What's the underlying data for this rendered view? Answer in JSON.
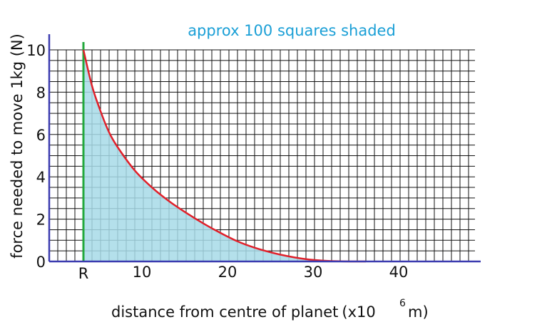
{
  "chart_data": {
    "type": "area",
    "annotation": "approx 100 squares shaded",
    "xlabel": "distance from centre of planet",
    "xlabel_unit_prefix": "(x10",
    "xlabel_unit_exponent": "6",
    "xlabel_unit_suffix": "m)",
    "ylabel": "force needed to move 1kg  (N)",
    "xlim": [
      0,
      50
    ],
    "ylim": [
      0,
      10
    ],
    "x_ticks": [
      {
        "value": 4,
        "label": "R"
      },
      {
        "value": 10,
        "label": "10"
      },
      {
        "value": 20,
        "label": "20"
      },
      {
        "value": 30,
        "label": "30"
      },
      {
        "value": 40,
        "label": "40"
      }
    ],
    "y_ticks": [
      {
        "value": 0,
        "label": "0"
      },
      {
        "value": 2,
        "label": "2"
      },
      {
        "value": 4,
        "label": "4"
      },
      {
        "value": 6,
        "label": "6"
      },
      {
        "value": 8,
        "label": "8"
      },
      {
        "value": 10,
        "label": "10"
      }
    ],
    "grid": true,
    "grid_x_step": 1,
    "grid_y_step": 0.5,
    "R_value": 4,
    "series": [
      {
        "x": [
          4,
          5,
          6,
          7,
          8,
          10,
          12,
          14,
          16,
          18,
          20,
          22,
          24,
          26,
          28,
          30,
          32,
          34,
          36,
          37
        ],
        "y": [
          10,
          8.3,
          7.1,
          6.1,
          5.4,
          4.3,
          3.5,
          2.85,
          2.3,
          1.8,
          1.35,
          0.95,
          0.65,
          0.42,
          0.24,
          0.11,
          0.04,
          0.01,
          0.0,
          0.0
        ]
      }
    ],
    "colors": {
      "grid": "#111111",
      "axis": "#3b3bb0",
      "curve": "#e0202a",
      "R_line": "#22a83c",
      "fill": "#a7dbe8",
      "annotation": "#1a9fd6"
    }
  }
}
